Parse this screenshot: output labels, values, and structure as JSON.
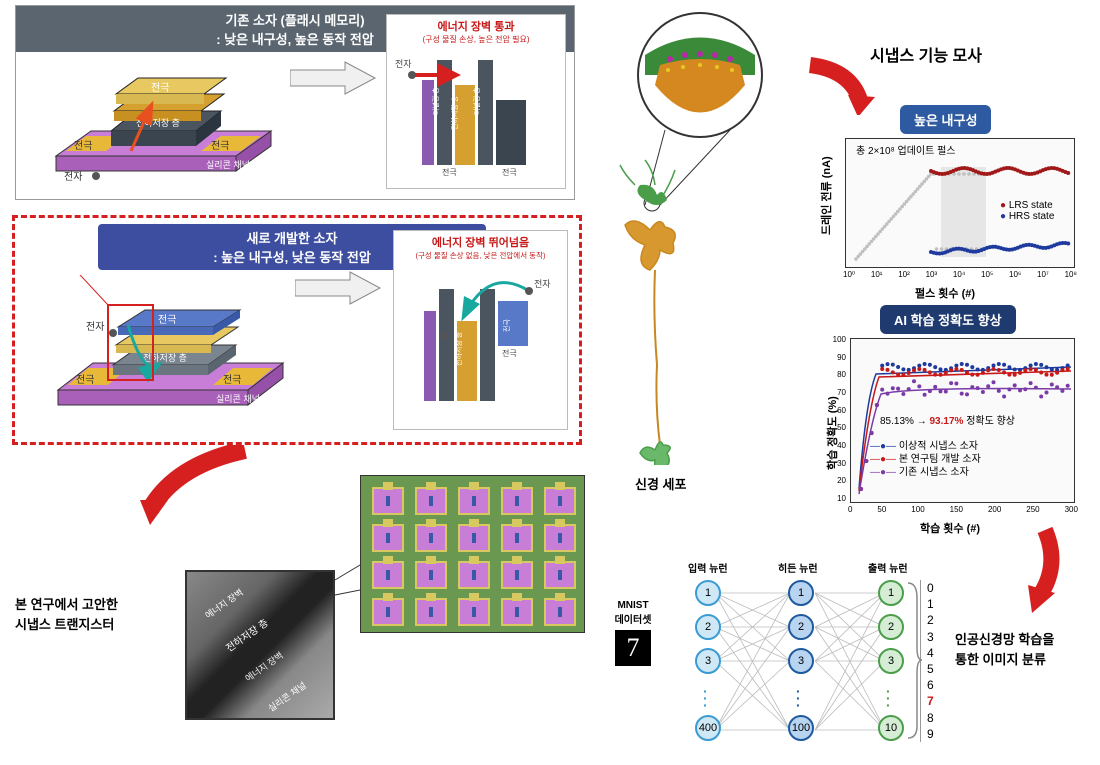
{
  "top_left": {
    "title1": "기존 소자 (플래시 메모리)",
    "title2": ": 낮은 내구성, 높은 동작 전압",
    "labels": [
      "전극",
      "전극",
      "전극",
      "전하저장 층",
      "실리콘 채널",
      "전자"
    ],
    "diagram_title": "에너지 장벽 통과",
    "diagram_sub": "(구성 물질 손상, 높은 전압 필요)",
    "diagram_labels": [
      "전자",
      "전극",
      "전하저장 층",
      "터널링 층",
      "전극"
    ]
  },
  "mid_left": {
    "title1": "새로 개발한 소자",
    "title2": ": 높은 내구성, 낮은 동작 전압",
    "labels": [
      "전극",
      "전극",
      "전극",
      "전하저장 층",
      "실리콘 채널",
      "전자"
    ],
    "diagram_title": "에너지 장벽 뛰어넘음",
    "diagram_sub": "(구성 물질 손상 없음, 낮은 전압에서 동작)",
    "diagram_labels": [
      "전자",
      "전극",
      "전하저장 층",
      "전극"
    ]
  },
  "bottom_left": {
    "caption": "본 연구에서 고안한\n시냅스 트랜지스터",
    "tem_labels": [
      "에너지 장벽",
      "전하저장 층",
      "에너지 장벽",
      "실리콘 채널"
    ]
  },
  "right": {
    "synapse_title": "시냅스 기능 모사",
    "neuron_label": "신경 세포",
    "endurance": {
      "badge": "높은 내구성",
      "note": "총 2×10⁸ 업데이트 펄스",
      "ylabel": "드레인 전류 (nA)",
      "xlabel": "펄스 횟수 (#)",
      "legend": [
        "LRS state",
        "HRS state"
      ],
      "xticks": [
        "10⁰",
        "10¹",
        "10²",
        "10³",
        "10⁴",
        "10⁵",
        "10⁶",
        "10⁷",
        "10⁸"
      ],
      "colors": {
        "lrs": "#a01818",
        "hrs": "#1e3a9e",
        "grey": "#c8c8c8"
      }
    },
    "accuracy": {
      "badge": "AI 학습 정확도 향상",
      "ylabel": "학습 정확도 (%)",
      "xlabel": "학습 횟수 (#)",
      "note_from": "85.13%  →",
      "note_to": "93.17%",
      "note_end": " 정확도 향상",
      "legend": [
        "이상적 시냅스 소자",
        "본 연구팀 개발 소자",
        "기존 시냅스 소자"
      ],
      "legend_colors": [
        "#1e3a9e",
        "#c81818",
        "#7a3aa8"
      ],
      "yticks": [
        "10",
        "20",
        "30",
        "40",
        "50",
        "60",
        "70",
        "80",
        "90",
        "100"
      ],
      "xticks": [
        "0",
        "50",
        "100",
        "150",
        "200",
        "250",
        "300"
      ]
    },
    "nn": {
      "cols": [
        "입력 뉴런",
        "히든 뉴런",
        "출력 뉴런"
      ],
      "mnist": "MNIST\n데이터셋",
      "input_nodes": [
        "1",
        "2",
        "3",
        "400"
      ],
      "hidden_nodes": [
        "1",
        "2",
        "3",
        "100"
      ],
      "output_nodes": [
        "1",
        "2",
        "3",
        "10"
      ],
      "digits": [
        "0",
        "1",
        "2",
        "3",
        "4",
        "5",
        "6",
        "7",
        "8",
        "9"
      ],
      "caption": "인공신경망 학습을\n통한 이미지 분류"
    }
  }
}
